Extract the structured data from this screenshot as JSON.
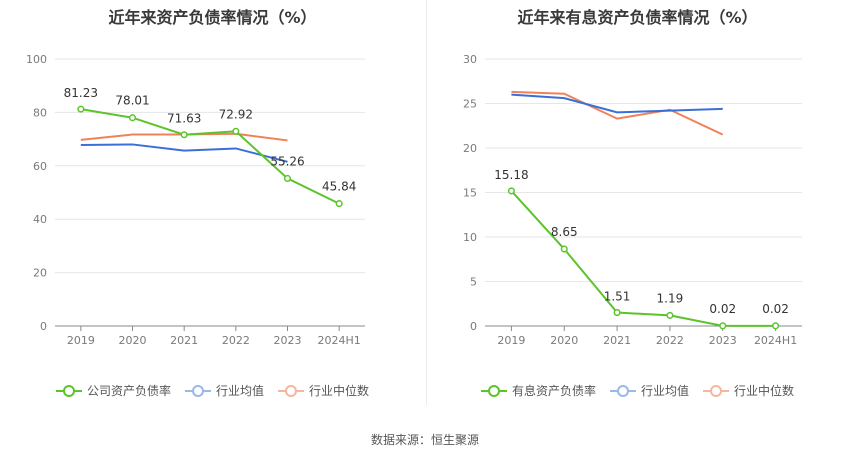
{
  "source_text": "数据来源：恒生聚源",
  "colors": {
    "company": "#5cc42b",
    "avg": "#3a6fd8",
    "median": "#f0825a",
    "grid": "#e6e6e6",
    "axis": "#888888"
  },
  "chart_data": [
    {
      "type": "line",
      "title": "近年来资产负债率情况（%）",
      "categories": [
        "2019",
        "2020",
        "2021",
        "2022",
        "2023",
        "2024H1"
      ],
      "ylim": [
        0,
        100
      ],
      "yticks": [
        0,
        20,
        40,
        60,
        80,
        100
      ],
      "grid": true,
      "legend_position": "bottom",
      "series": [
        {
          "name": "公司资产负债率",
          "key": "company",
          "values": [
            81.23,
            78.01,
            71.63,
            72.92,
            55.26,
            45.84
          ],
          "labels": [
            "81.23",
            "78.01",
            "71.63",
            "72.92",
            "55.26",
            "45.84"
          ]
        },
        {
          "name": "行业均值",
          "key": "avg",
          "values": [
            67.8,
            68.0,
            65.7,
            66.5,
            61.5,
            null
          ]
        },
        {
          "name": "行业中位数",
          "key": "median",
          "values": [
            69.7,
            71.7,
            71.7,
            72.0,
            69.5,
            null
          ]
        }
      ]
    },
    {
      "type": "line",
      "title": "近年来有息资产负债率情况（%）",
      "categories": [
        "2019",
        "2020",
        "2021",
        "2022",
        "2023",
        "2024H1"
      ],
      "ylim": [
        0,
        30
      ],
      "yticks": [
        0,
        5,
        10,
        15,
        20,
        25,
        30
      ],
      "grid": true,
      "legend_position": "bottom",
      "series": [
        {
          "name": "有息资产负债率",
          "key": "company",
          "values": [
            15.18,
            8.65,
            1.51,
            1.19,
            0.02,
            0.02
          ],
          "labels": [
            "15.18",
            "8.65",
            "1.51",
            "1.19",
            "0.02",
            "0.02"
          ]
        },
        {
          "name": "行业均值",
          "key": "avg",
          "values": [
            26.0,
            25.6,
            24.0,
            24.2,
            24.4,
            null
          ]
        },
        {
          "name": "行业中位数",
          "key": "median",
          "values": [
            26.3,
            26.1,
            23.3,
            24.3,
            21.5,
            null
          ]
        }
      ]
    }
  ]
}
